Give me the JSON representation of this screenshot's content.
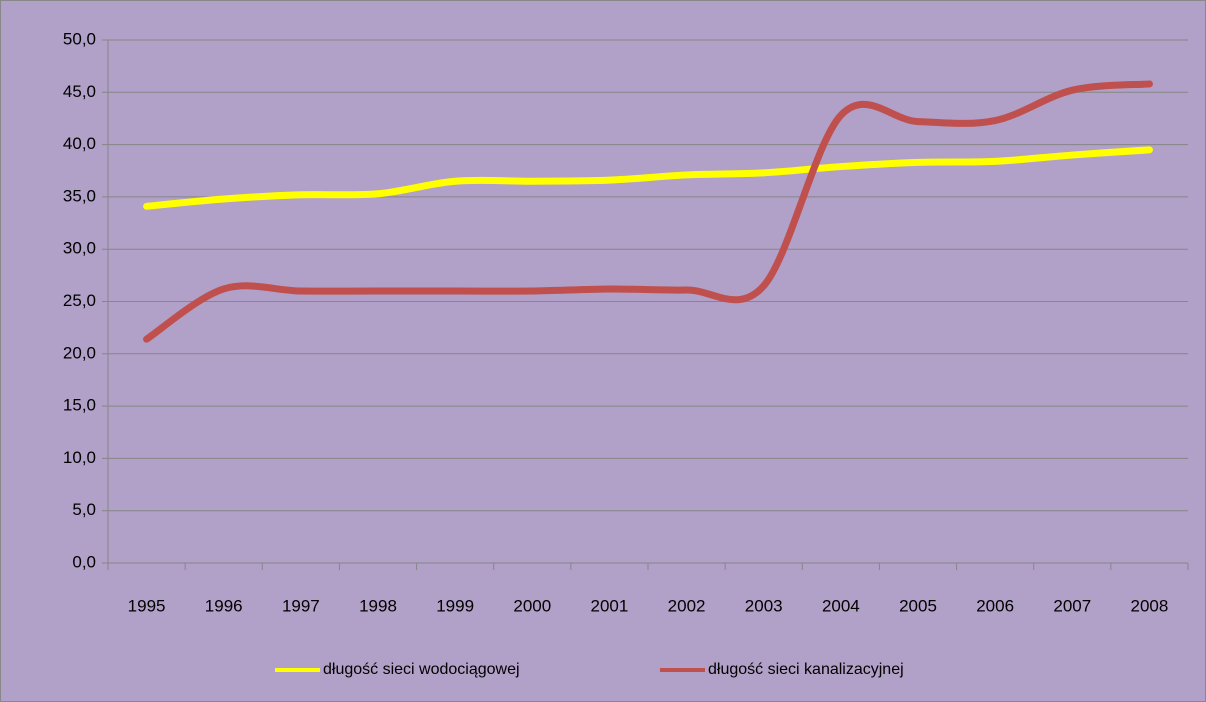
{
  "chart_data": {
    "type": "line",
    "categories": [
      "1995",
      "1996",
      "1997",
      "1998",
      "1999",
      "2000",
      "2001",
      "2002",
      "2003",
      "2004",
      "2005",
      "2006",
      "2007",
      "2008"
    ],
    "series": [
      {
        "name": "długość sieci wodociągowej",
        "color": "#ffff00",
        "values": [
          34.1,
          34.8,
          35.2,
          35.3,
          36.5,
          36.5,
          36.6,
          37.1,
          37.3,
          37.9,
          38.3,
          38.4,
          39.0,
          39.5
        ]
      },
      {
        "name": "długość sieci kanalizacyjnej",
        "color": "#c0504d",
        "values": [
          21.4,
          26.2,
          26.0,
          26.0,
          26.0,
          26.0,
          26.2,
          26.1,
          26.5,
          42.8,
          42.2,
          42.3,
          45.2,
          45.8
        ]
      }
    ],
    "ylim": [
      0,
      50
    ],
    "yticks": [
      {
        "value": 0,
        "label": "0,0"
      },
      {
        "value": 5,
        "label": "5,0"
      },
      {
        "value": 10,
        "label": "10,0"
      },
      {
        "value": 15,
        "label": "15,0"
      },
      {
        "value": 20,
        "label": "20,0"
      },
      {
        "value": 25,
        "label": "25,0"
      },
      {
        "value": 30,
        "label": "30,0"
      },
      {
        "value": 35,
        "label": "35,0"
      },
      {
        "value": 40,
        "label": "40,0"
      },
      {
        "value": 45,
        "label": "45,0"
      },
      {
        "value": 50,
        "label": "50,0"
      }
    ],
    "grid": true,
    "smooth": true,
    "legend": "bottom",
    "background": "#b1a0c7"
  }
}
